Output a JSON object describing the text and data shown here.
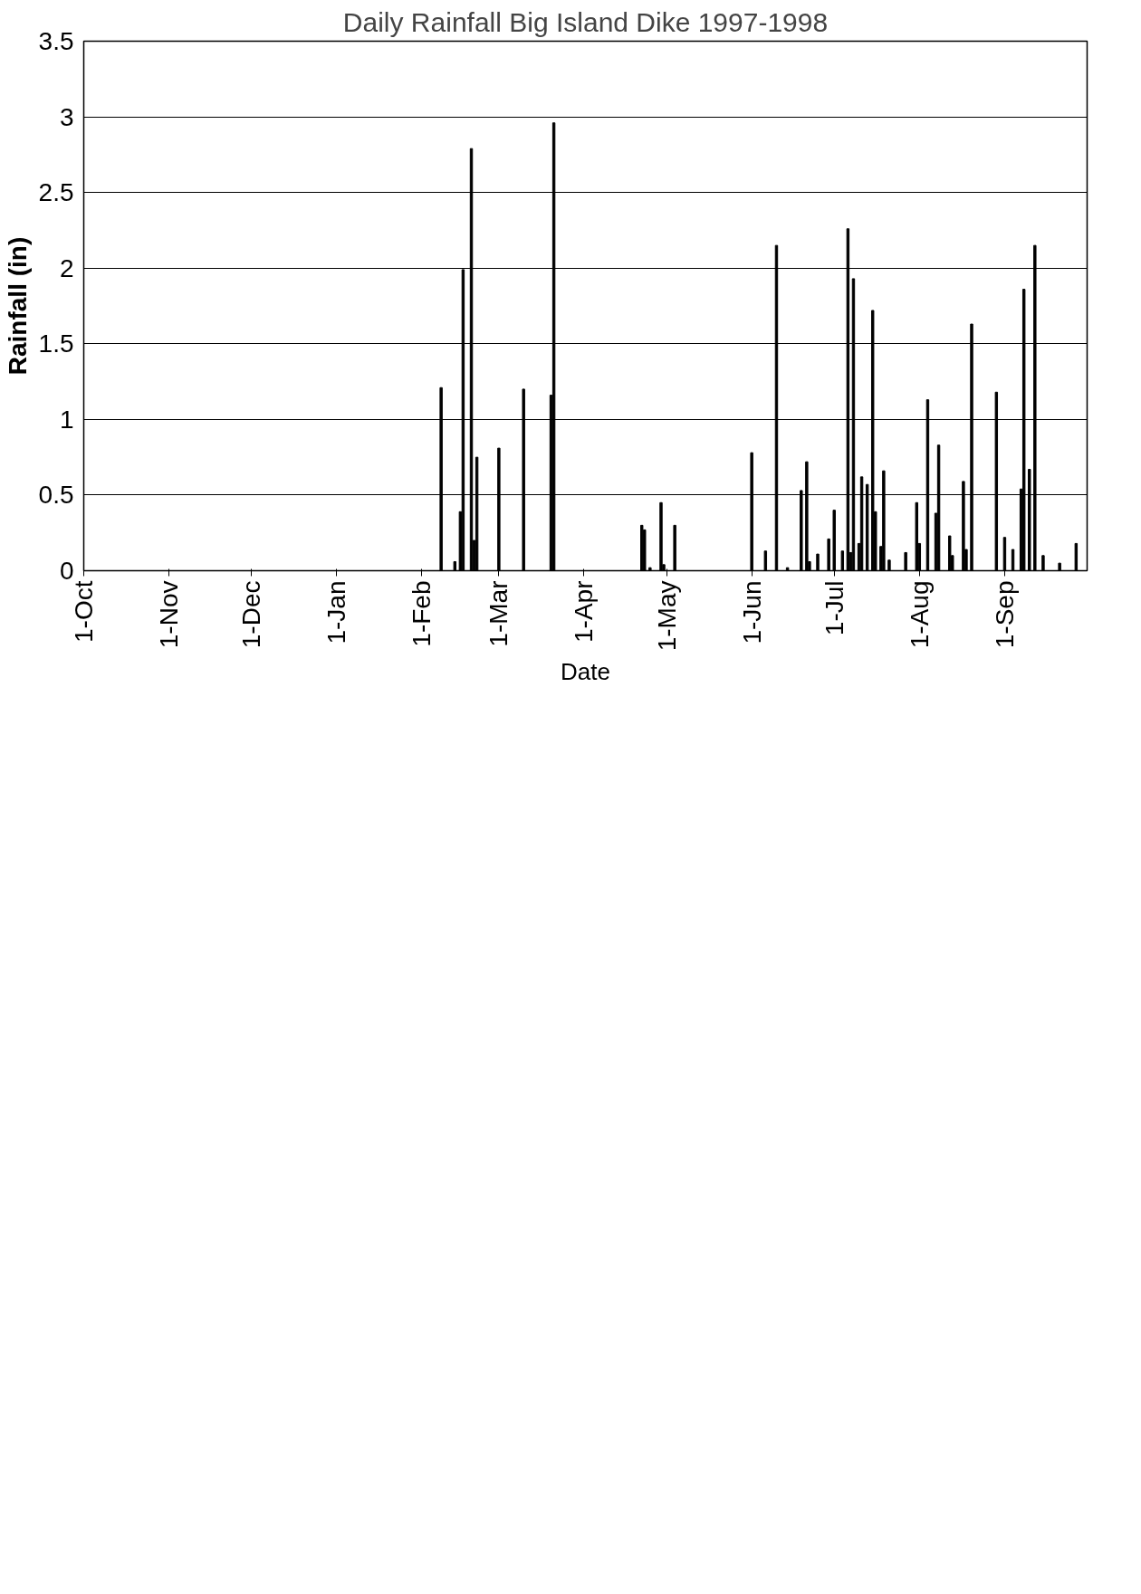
{
  "chart_data": {
    "type": "bar",
    "title": "Daily Rainfall Big Island Dike 1997-1998",
    "xlabel": "Date",
    "ylabel": "Rainfall (in)",
    "x": [
      "1998-02-08",
      "1998-02-13",
      "1998-02-15",
      "1998-02-16",
      "1998-02-19",
      "1998-02-20",
      "1998-02-21",
      "1998-03-01",
      "1998-03-10",
      "1998-03-20",
      "1998-03-21",
      "1998-04-22",
      "1998-04-23",
      "1998-04-25",
      "1998-04-29",
      "1998-04-30",
      "1998-05-04",
      "1998-06-01",
      "1998-06-06",
      "1998-06-10",
      "1998-06-14",
      "1998-06-19",
      "1998-06-21",
      "1998-06-22",
      "1998-06-25",
      "1998-06-29",
      "1998-07-01",
      "1998-07-04",
      "1998-07-06",
      "1998-07-07",
      "1998-07-08",
      "1998-07-10",
      "1998-07-11",
      "1998-07-13",
      "1998-07-15",
      "1998-07-16",
      "1998-07-18",
      "1998-07-19",
      "1998-07-21",
      "1998-07-27",
      "1998-07-31",
      "1998-08-01",
      "1998-08-04",
      "1998-08-07",
      "1998-08-08",
      "1998-08-12",
      "1998-08-13",
      "1998-08-17",
      "1998-08-18",
      "1998-08-20",
      "1998-08-29",
      "1998-09-01",
      "1998-09-04",
      "1998-09-07",
      "1998-09-08",
      "1998-09-10",
      "1998-09-12",
      "1998-09-15",
      "1998-09-21",
      "1998-09-27"
    ],
    "values": [
      1.21,
      0.06,
      0.39,
      1.99,
      2.79,
      0.2,
      0.75,
      0.81,
      1.2,
      1.16,
      2.96,
      0.3,
      0.27,
      0.02,
      0.45,
      0.04,
      0.3,
      0.78,
      0.13,
      2.15,
      0.02,
      0.53,
      0.72,
      0.06,
      0.11,
      0.21,
      0.4,
      0.13,
      2.26,
      0.12,
      1.93,
      0.18,
      0.62,
      0.57,
      1.72,
      0.39,
      0.16,
      0.66,
      0.07,
      0.12,
      0.45,
      0.18,
      1.13,
      0.38,
      0.83,
      0.23,
      0.1,
      0.59,
      0.14,
      1.63,
      1.18,
      0.22,
      0.14,
      0.54,
      1.86,
      0.67,
      2.15,
      0.1,
      0.05,
      0.18
    ],
    "color": "#000000",
    "xlim": [
      "1997-10-01",
      "1998-10-01"
    ],
    "xticks": [
      {
        "value": "1997-10-01",
        "label": "1-Oct"
      },
      {
        "value": "1997-11-01",
        "label": "1-Nov"
      },
      {
        "value": "1997-12-01",
        "label": "1-Dec"
      },
      {
        "value": "1998-01-01",
        "label": "1-Jan"
      },
      {
        "value": "1998-02-01",
        "label": "1-Feb"
      },
      {
        "value": "1998-03-01",
        "label": "1-Mar"
      },
      {
        "value": "1998-04-01",
        "label": "1-Apr"
      },
      {
        "value": "1998-05-01",
        "label": "1-May"
      },
      {
        "value": "1998-06-01",
        "label": "1-Jun"
      },
      {
        "value": "1998-07-01",
        "label": "1-Jul"
      },
      {
        "value": "1998-08-01",
        "label": "1-Aug"
      },
      {
        "value": "1998-09-01",
        "label": "1-Sep"
      }
    ],
    "ylim": [
      0,
      3.5
    ],
    "yticks": [
      0,
      0.5,
      1,
      1.5,
      2,
      2.5,
      3,
      3.5
    ],
    "grid": "y"
  }
}
